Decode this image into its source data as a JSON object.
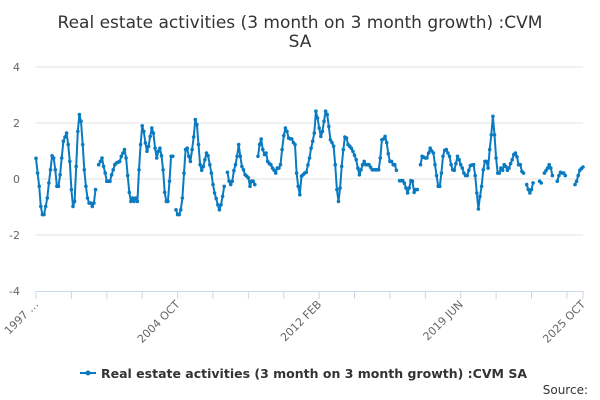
{
  "chart_data": {
    "type": "line",
    "title_lines": [
      "Real estate activities (3 month on 3 month growth) :CVM",
      "SA"
    ],
    "xlabel": "",
    "ylabel": "",
    "x_range": [
      "1997-06",
      "2025-10"
    ],
    "ylim": [
      -4,
      4
    ],
    "y_ticks": [
      4,
      2,
      0,
      -2,
      -4
    ],
    "x_tick_labels": [
      {
        "date": "1997-06",
        "label": "1997 …"
      },
      {
        "date": "2004-10",
        "label": "2004 OCT"
      },
      {
        "date": "2012-02",
        "label": "2012 FEB"
      },
      {
        "date": "2019-06",
        "label": "2019 JUN"
      },
      {
        "date": "2025-10",
        "label": "2025 OCT"
      }
    ],
    "grid": true,
    "legend_position": "bottom",
    "series": [
      {
        "name": "Real estate activities (3 month on 3 month growth) :CVM SA",
        "color": "#0a7bc1",
        "marker": "circle",
        "values_by_year_jan_to_dec": {
          "1997": [
            null,
            null,
            null,
            null,
            null,
            0.74,
            0.21,
            -0.26,
            -0.98,
            -1.27,
            -1.27,
            -0.98
          ],
          "1998": [
            -0.68,
            -0.14,
            0.33,
            0.83,
            0.75,
            0.33,
            -0.26,
            -0.26,
            0.15,
            0.75,
            1.35,
            1.5
          ],
          "1999": [
            1.64,
            1.23,
            0.63,
            -0.38,
            -0.98,
            -0.8,
            0.45,
            1.7,
            2.3,
            2.06,
            1.23,
            0.33
          ],
          "2000": [
            -0.26,
            -0.68,
            -0.86,
            -0.86,
            -0.98,
            -0.86,
            -0.38,
            null,
            0.51,
            0.63,
            0.75,
            0.45
          ],
          "2001": [
            0.21,
            -0.08,
            -0.08,
            -0.08,
            0.15,
            0.33,
            0.51,
            0.57,
            0.6,
            0.63,
            0.81,
            0.93
          ],
          "2002": [
            1.05,
            0.75,
            0.12,
            -0.48,
            -0.8,
            -0.68,
            -0.8,
            -0.68,
            -0.8,
            0.33,
            1.23,
            1.9
          ],
          "2003": [
            1.7,
            1.29,
            0.99,
            1.17,
            1.52,
            1.82,
            1.64,
            1.1,
            0.75,
            0.99,
            1.1,
            0.83
          ],
          "2004": [
            0.33,
            -0.48,
            -0.8,
            -0.8,
            -0.08,
            0.81,
            0.81,
            null,
            -1.1,
            -1.27,
            -1.27,
            -1.1
          ],
          "2005": [
            -0.68,
            0.21,
            1.05,
            1.1,
            0.81,
            0.63,
            1.05,
            1.5,
            2.12,
            1.94,
            1.23,
            0.51
          ],
          "2006": [
            0.31,
            0.45,
            0.69,
            0.93,
            0.83,
            0.51,
            0.21,
            -0.2,
            -0.5,
            -0.7,
            -0.92,
            -1.1
          ],
          "2007": [
            -0.92,
            -0.62,
            -0.26,
            null,
            0.24,
            -0.08,
            -0.2,
            -0.08,
            0.3,
            0.51,
            0.81,
            1.23
          ],
          "2008": [
            0.81,
            0.45,
            0.33,
            0.15,
            0.1,
            0.04,
            -0.26,
            -0.08,
            -0.08,
            -0.2,
            null,
            0.81
          ],
          "2009": [
            1.23,
            1.43,
            1.05,
            0.87,
            0.93,
            0.63,
            0.55,
            0.51,
            0.39,
            0.31,
            0.21,
            0.39
          ],
          "2010": [
            0.39,
            0.51,
            1.05,
            1.55,
            1.82,
            1.7,
            1.46,
            1.44,
            1.43,
            1.3,
            1.23,
            0.21
          ],
          "2011": [
            -0.26,
            -0.56,
            0.1,
            0.15,
            0.21,
            0.24,
            0.5,
            0.75,
            1.1,
            1.35,
            1.64,
            2.42
          ],
          "2012": [
            2.18,
            1.82,
            1.52,
            1.7,
            2.06,
            2.42,
            2.3,
            1.88,
            1.4,
            1.3,
            1.17,
            0.51
          ],
          "2013": [
            -0.38,
            -0.8,
            -0.32,
            0.45,
            1.05,
            1.5,
            1.46,
            1.23,
            1.17,
            1.1,
            0.99,
            0.85
          ],
          "2014": [
            0.69,
            0.39,
            0.15,
            0.33,
            0.51,
            0.63,
            0.51,
            0.51,
            0.51,
            0.42,
            0.33,
            0.33
          ],
          "2015": [
            0.33,
            0.33,
            0.33,
            0.75,
            1.4,
            1.43,
            1.52,
            1.3,
            0.9,
            0.63,
            0.63,
            0.51
          ],
          "2016": [
            0.51,
            0.31,
            null,
            -0.06,
            -0.06,
            -0.06,
            -0.15,
            -0.32,
            -0.5,
            -0.32,
            -0.06,
            -0.08
          ],
          "2017": [
            -0.48,
            -0.38,
            -0.38,
            null,
            0.51,
            0.81,
            0.78,
            0.75,
            0.75,
            0.93,
            1.1,
            1.0
          ],
          "2018": [
            0.93,
            0.51,
            0.12,
            -0.26,
            -0.26,
            0.21,
            0.81,
            1.02,
            1.05,
            0.93,
            0.81,
            0.51
          ],
          "2019": [
            0.33,
            0.31,
            0.55,
            0.81,
            0.69,
            0.51,
            0.39,
            0.21,
            0.12,
            0.12,
            0.31,
            0.48
          ],
          "2020": [
            0.5,
            0.51,
            0.12,
            -0.5,
            -1.07,
            -0.62,
            -0.26,
            0.33,
            0.63,
            0.63,
            0.39,
            1.05
          ],
          "2021": [
            1.58,
            2.24,
            1.58,
            0.75,
            0.21,
            0.21,
            0.39,
            0.31,
            0.51,
            0.45,
            0.31,
            0.39
          ],
          "2022": [
            0.55,
            0.69,
            0.87,
            0.93,
            0.79,
            0.51,
            0.51,
            0.27,
            0.21,
            null,
            -0.2,
            -0.38
          ],
          "2023": [
            -0.5,
            -0.38,
            -0.14,
            null,
            null,
            null,
            -0.08,
            -0.14,
            null,
            0.21,
            0.3,
            0.39
          ],
          "2024": [
            0.51,
            0.39,
            0.12,
            null,
            null,
            -0.08,
            0.12,
            0.24,
            0.21,
            0.21,
            0.12,
            null
          ],
          "2025": [
            null,
            null,
            null,
            null,
            -0.2,
            -0.08,
            0.12,
            0.31,
            0.37,
            0.43
          ]
        }
      }
    ]
  },
  "source_label": "Source:"
}
